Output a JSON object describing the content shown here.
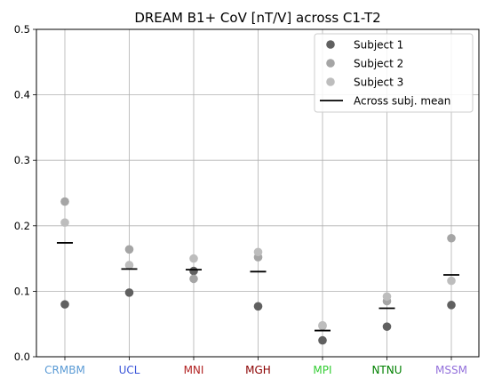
{
  "chart_data": {
    "type": "scatter",
    "title": "DREAM B1+ CoV [nT/V] across C1-T2",
    "xlabel": "",
    "ylabel": "",
    "categories": [
      "CRMBM",
      "UCL",
      "MNI",
      "MGH",
      "MPI",
      "NTNU",
      "MSSM"
    ],
    "category_colors": [
      "#5b9bd5",
      "#3a55d9",
      "#b22222",
      "#8b0000",
      "#32cd32",
      "#008000",
      "#9370db"
    ],
    "ylim": [
      0,
      0.5
    ],
    "yticks": [
      "0.0",
      "0.1",
      "0.2",
      "0.3",
      "0.4",
      "0.5"
    ],
    "grid": true,
    "legend_position": "top-right",
    "series": [
      {
        "name": "Subject 1",
        "color": "#606060",
        "values": [
          0.08,
          0.098,
          0.131,
          0.077,
          0.025,
          0.046,
          0.079
        ]
      },
      {
        "name": "Subject 2",
        "color": "#a5a5a5",
        "values": [
          0.237,
          0.164,
          0.119,
          0.152,
          0.047,
          0.085,
          0.181
        ]
      },
      {
        "name": "Subject 3",
        "color": "#bdbdbd",
        "values": [
          0.205,
          0.14,
          0.15,
          0.16,
          0.048,
          0.092,
          0.116
        ]
      }
    ],
    "mean_series": {
      "name": "Across subj. mean",
      "color": "#000000",
      "values": [
        0.174,
        0.134,
        0.133,
        0.13,
        0.04,
        0.074,
        0.125
      ]
    }
  }
}
